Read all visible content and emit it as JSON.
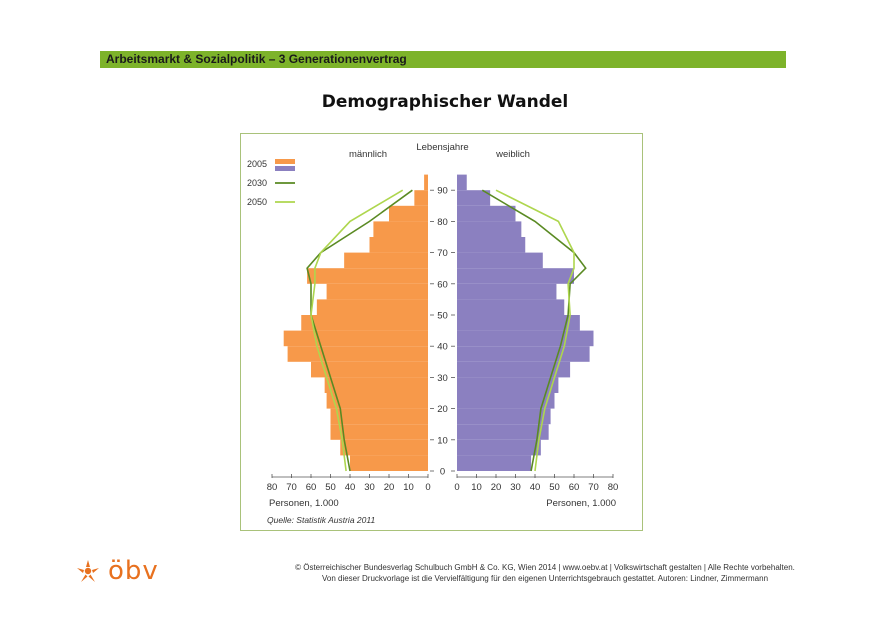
{
  "header": {
    "title": "Arbeitsmarkt & Sozialpolitik – 3 Generationenvertrag"
  },
  "page": {
    "title": "Demographischer Wandel"
  },
  "logo": {
    "text": "öbv"
  },
  "footer": {
    "line1": "© Österreichischer Bundesverlag Schulbuch GmbH & Co. KG, Wien 2014 | www.oebv.at | Volkswirtschaft gestalten | Alle Rechte vorbehalten.",
    "line2": "Von dieser Druckvorlage ist die Vervielfältigung für den eigenen Unterrichtsgebrauch gestattet. Autoren: Lindner, Zimmermann"
  },
  "chart_data": {
    "type": "bar",
    "subtype": "population-pyramid",
    "title": "",
    "center_label": "Lebensjahre",
    "left_label": "männlich",
    "right_label": "weiblich",
    "xlabel_left": "Personen, 1.000",
    "xlabel_right": "Personen, 1.000",
    "source": "Quelle: Statistik Austria 2011",
    "x_ticks": [
      0,
      10,
      20,
      30,
      40,
      50,
      60,
      70,
      80
    ],
    "x_ticks_left": [
      "80",
      "70",
      "60",
      "50",
      "40",
      "30",
      "20",
      "10",
      "0"
    ],
    "x_ticks_right": [
      "0",
      "10",
      "20",
      "30",
      "40",
      "50",
      "60",
      "70",
      "80"
    ],
    "xlim": [
      0,
      80
    ],
    "age_ticks": [
      "0",
      "10",
      "20",
      "30",
      "40",
      "50",
      "60",
      "70",
      "80",
      "90"
    ],
    "ylim": [
      0,
      100
    ],
    "legend": [
      "2005",
      "2030",
      "2050"
    ],
    "legend_position": "top-left",
    "colors": {
      "male_2005": "#f7994a",
      "female_2005": "#8b80c0",
      "2030": "#5a8a23",
      "2050": "#aed64e"
    },
    "age_groups": [
      "0-4",
      "5-9",
      "10-14",
      "15-19",
      "20-24",
      "25-29",
      "30-34",
      "35-39",
      "40-44",
      "45-49",
      "50-54",
      "55-59",
      "60-64",
      "65-69",
      "70-74",
      "75-79",
      "80-84",
      "85-89",
      "90-94"
    ],
    "series": [
      {
        "name": "2005",
        "sex": "male",
        "values": [
          40,
          45,
          50,
          50,
          52,
          53,
          60,
          72,
          74,
          65,
          57,
          52,
          62,
          43,
          30,
          28,
          20,
          7,
          2
        ]
      },
      {
        "name": "2005",
        "sex": "female",
        "values": [
          38,
          43,
          47,
          48,
          50,
          52,
          58,
          68,
          70,
          63,
          55,
          51,
          60,
          44,
          35,
          33,
          30,
          17,
          5
        ]
      }
    ],
    "lines": [
      {
        "name": "2030",
        "ages": [
          0,
          10,
          20,
          30,
          40,
          50,
          60,
          65,
          70,
          80,
          90
        ],
        "male": [
          40,
          43,
          45,
          50,
          55,
          60,
          60,
          62,
          55,
          30,
          8
        ],
        "female": [
          38,
          41,
          43,
          48,
          53,
          57,
          58,
          66,
          60,
          40,
          13
        ]
      },
      {
        "name": "2050",
        "ages": [
          0,
          10,
          20,
          30,
          40,
          50,
          60,
          65,
          70,
          80,
          90
        ],
        "male": [
          42,
          44,
          47,
          52,
          57,
          60,
          58,
          58,
          55,
          40,
          13
        ],
        "female": [
          40,
          42,
          45,
          50,
          55,
          58,
          57,
          60,
          60,
          52,
          20
        ]
      }
    ]
  }
}
